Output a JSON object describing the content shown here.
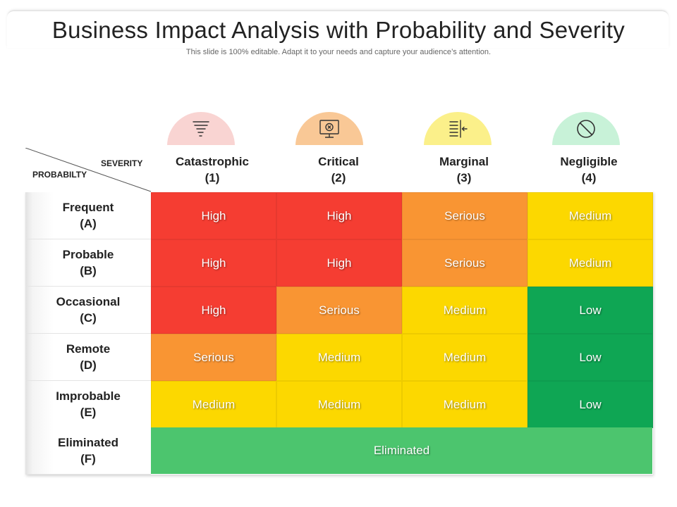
{
  "header": {
    "title": "Business Impact Analysis with Probability and Severity",
    "subtitle": "This slide is 100% editable. Adapt it to your needs and capture your audience’s attention."
  },
  "matrix": {
    "corner": {
      "severity_label": "SEVERITY",
      "probability_label": "PROBABILTY"
    },
    "columns": [
      {
        "name": "Catastrophic",
        "code": "(1)",
        "icon": "tornado-icon",
        "circle_color": "#f9d4d2"
      },
      {
        "name": "Critical",
        "code": "(2)",
        "icon": "monitor-x-icon",
        "circle_color": "#f9c896"
      },
      {
        "name": "Marginal",
        "code": "(3)",
        "icon": "align-arrow-icon",
        "circle_color": "#fbf08a"
      },
      {
        "name": "Negligible",
        "code": "(4)",
        "icon": "prohibited-icon",
        "circle_color": "#c8f2d8"
      }
    ],
    "rows": [
      {
        "name": "Frequent",
        "code": "(A)",
        "cells": [
          "High",
          "High",
          "Serious",
          "Medium"
        ]
      },
      {
        "name": "Probable",
        "code": "(B)",
        "cells": [
          "High",
          "High",
          "Serious",
          "Medium"
        ]
      },
      {
        "name": "Occasional",
        "code": "(C)",
        "cells": [
          "High",
          "Serious",
          "Medium",
          "Low"
        ]
      },
      {
        "name": "Remote",
        "code": "(D)",
        "cells": [
          "Serious",
          "Medium",
          "Medium",
          "Low"
        ]
      },
      {
        "name": "Improbable",
        "code": "(E)",
        "cells": [
          "Medium",
          "Medium",
          "Medium",
          "Low"
        ]
      },
      {
        "name": "Eliminated",
        "code": "(F)",
        "cells": [
          "Eliminated"
        ]
      }
    ],
    "level_colors": {
      "High": "#f53d32",
      "Serious": "#f99533",
      "Medium": "#fcd800",
      "Low": "#0fa654",
      "Eliminated": "#4cc56e"
    }
  }
}
